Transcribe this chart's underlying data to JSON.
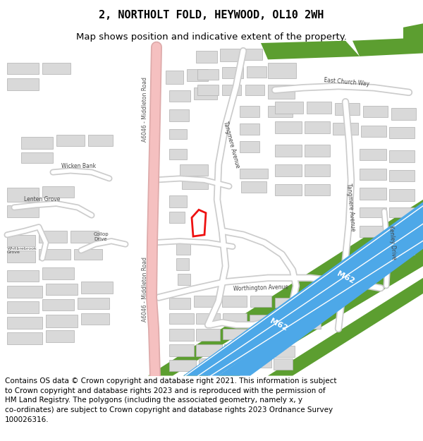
{
  "title": "2, NORTHOLT FOLD, HEYWOOD, OL10 2WH",
  "subtitle": "Map shows position and indicative extent of the property.",
  "footer_line1": "Contains OS data © Crown copyright and database right 2021. This information is subject",
  "footer_line2": "to Crown copyright and database rights 2023 and is reproduced with the permission of",
  "footer_line3": "HM Land Registry. The polygons (including the associated geometry, namely x, y",
  "footer_line4": "co-ordinates) are subject to Crown copyright and database rights 2023 Ordnance Survey",
  "footer_line5": "100026316.",
  "map_bg": "#f5f5f0",
  "building_color": "#d9d9d9",
  "building_edge": "#b0b0b0",
  "green_dark": "#5c9e30",
  "motorway_blue": "#4da8e8",
  "a_road_pink": "#f5c0c0",
  "a_road_edge": "#ddaaaa",
  "road_white": "#ffffff",
  "road_edge": "#cccccc",
  "plot_red": "#ee1111",
  "title_fs": 11,
  "subtitle_fs": 9.5,
  "footer_fs": 7.5
}
